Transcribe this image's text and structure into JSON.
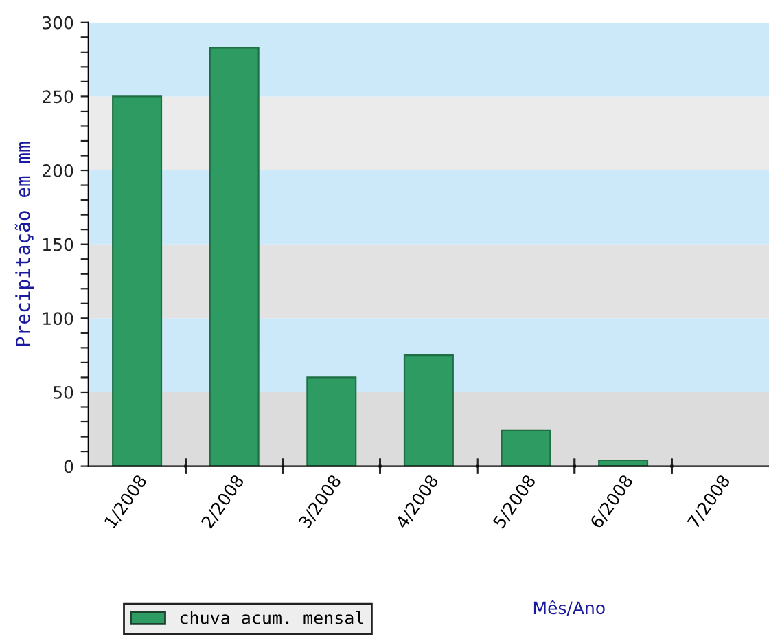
{
  "chart_data": {
    "type": "bar",
    "xlabel": "Mês/Ano",
    "ylabel": "Precipitação em mm",
    "categories": [
      "1/2008",
      "2/2008",
      "3/2008",
      "4/2008",
      "5/2008",
      "6/2008",
      "7/2008"
    ],
    "series": [
      {
        "name": "chuva acum. mensal",
        "color": "#2e9b62",
        "values": [
          250,
          283,
          60,
          75,
          24,
          4,
          null
        ]
      }
    ],
    "ylim": [
      0,
      300
    ],
    "yticks": [
      0,
      {
        "value": 10,
        "label": null
      },
      {
        "value": 20,
        "label": null
      },
      {
        "value": 30,
        "label": null
      },
      {
        "value": 40,
        "label": null
      },
      50,
      {
        "value": 60,
        "label": null
      },
      {
        "value": 70,
        "label": null
      },
      {
        "value": 80,
        "label": null
      },
      {
        "value": 90,
        "label": null
      },
      100,
      {
        "value": 110,
        "label": null
      },
      {
        "value": 120,
        "label": null
      },
      {
        "value": 130,
        "label": null
      },
      {
        "value": 140,
        "label": null
      },
      150,
      {
        "value": 160,
        "label": null
      },
      {
        "value": 170,
        "label": null
      },
      {
        "value": 180,
        "label": null
      },
      {
        "value": 190,
        "label": null
      },
      200,
      {
        "value": 210,
        "label": null
      },
      {
        "value": 220,
        "label": null
      },
      {
        "value": 230,
        "label": null
      },
      {
        "value": 240,
        "label": null
      },
      250,
      {
        "value": 260,
        "label": null
      },
      {
        "value": 270,
        "label": null
      },
      {
        "value": 280,
        "label": null
      },
      {
        "value": 290,
        "label": null
      },
      300
    ],
    "bands": [
      {
        "axis": "y",
        "from": 0,
        "to": 50,
        "color": "#dcdcdc"
      },
      {
        "axis": "y",
        "from": 50,
        "to": 100,
        "color": "#cce9f9"
      },
      {
        "axis": "y",
        "from": 100,
        "to": 150,
        "color": "#e2e2e2"
      },
      {
        "axis": "y",
        "from": 150,
        "to": 200,
        "color": "#cce9f9"
      },
      {
        "axis": "y",
        "from": 200,
        "to": 250,
        "color": "#ebebeb"
      },
      {
        "axis": "y",
        "from": 250,
        "to": 300,
        "color": "#cce9f9"
      }
    ],
    "grid": false,
    "legend": "bottom left"
  }
}
